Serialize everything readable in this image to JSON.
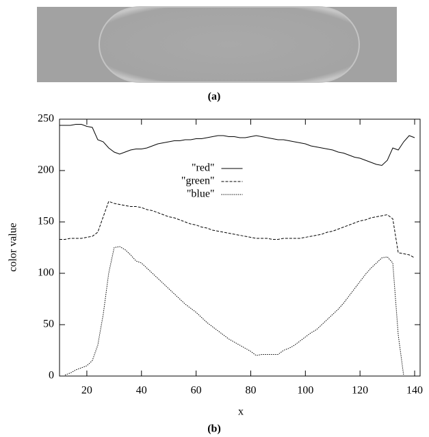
{
  "subfigure_labels": [
    "(a)",
    "(b)"
  ],
  "chart_data": {
    "type": "line",
    "xlabel": "x",
    "ylabel": "color value",
    "x": [
      10,
      12,
      14,
      16,
      18,
      20,
      22,
      24,
      26,
      28,
      30,
      32,
      34,
      36,
      38,
      40,
      42,
      44,
      46,
      48,
      50,
      52,
      54,
      56,
      58,
      60,
      62,
      64,
      66,
      68,
      70,
      72,
      74,
      76,
      78,
      80,
      82,
      84,
      86,
      88,
      90,
      92,
      94,
      96,
      98,
      100,
      102,
      104,
      106,
      108,
      110,
      112,
      114,
      116,
      118,
      120,
      122,
      124,
      126,
      128,
      130,
      132,
      134,
      136,
      138,
      140
    ],
    "series": [
      {
        "name": "\"red\"",
        "color": "#000000",
        "dash": "solid",
        "values": [
          244,
          244,
          244,
          245,
          245,
          243,
          242,
          230,
          228,
          222,
          218,
          216,
          218,
          220,
          221,
          221,
          222,
          224,
          226,
          227,
          228,
          229,
          229,
          230,
          230,
          231,
          231,
          232,
          233,
          234,
          234,
          233,
          233,
          232,
          232,
          233,
          234,
          233,
          232,
          231,
          230,
          230,
          229,
          228,
          227,
          226,
          224,
          223,
          222,
          221,
          220,
          218,
          217,
          215,
          213,
          212,
          210,
          208,
          206,
          205,
          210,
          222,
          220,
          228,
          234,
          232
        ]
      },
      {
        "name": "\"green\"",
        "color": "#000000",
        "dash": "dashed",
        "values": [
          133,
          133,
          134,
          134,
          134,
          135,
          136,
          140,
          155,
          170,
          168,
          167,
          166,
          165,
          165,
          164,
          162,
          161,
          159,
          157,
          155,
          154,
          152,
          150,
          148,
          147,
          145,
          144,
          142,
          141,
          140,
          139,
          138,
          137,
          136,
          135,
          134,
          134,
          134,
          133,
          133,
          134,
          134,
          134,
          134,
          135,
          136,
          137,
          138,
          140,
          141,
          143,
          145,
          147,
          149,
          151,
          152,
          154,
          155,
          156,
          157,
          153,
          120,
          119,
          118,
          115
        ]
      },
      {
        "name": "\"blue\"",
        "color": "#000000",
        "dash": "dotted",
        "values": [
          null,
          1,
          3,
          6,
          8,
          10,
          15,
          30,
          60,
          100,
          125,
          126,
          123,
          118,
          112,
          110,
          105,
          100,
          95,
          90,
          85,
          80,
          75,
          70,
          66,
          62,
          57,
          52,
          48,
          44,
          40,
          36,
          33,
          30,
          27,
          24,
          20,
          21,
          21,
          21,
          21,
          25,
          27,
          30,
          34,
          38,
          42,
          45,
          50,
          55,
          60,
          65,
          71,
          78,
          85,
          92,
          99,
          105,
          110,
          115,
          116,
          110,
          40,
          0,
          null,
          null
        ]
      }
    ],
    "xlim": [
      10,
      142
    ],
    "ylim": [
      0,
      250
    ],
    "xticks": [
      20,
      40,
      60,
      80,
      100,
      120,
      140
    ],
    "yticks": [
      0,
      50,
      100,
      150,
      200,
      250
    ],
    "grid": false,
    "legend": "upper center"
  }
}
